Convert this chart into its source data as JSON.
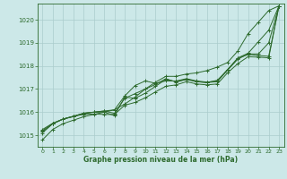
{
  "background_color": "#cce8e8",
  "grid_color": "#aacccc",
  "line_color": "#2d6a2d",
  "xlabel": "Graphe pression niveau de la mer (hPa)",
  "ylim": [
    1014.5,
    1020.7
  ],
  "xlim": [
    -0.5,
    23.5
  ],
  "yticks": [
    1015,
    1016,
    1017,
    1018,
    1019,
    1020
  ],
  "xticks": [
    0,
    1,
    2,
    3,
    4,
    5,
    6,
    7,
    8,
    9,
    10,
    11,
    12,
    13,
    14,
    15,
    16,
    17,
    18,
    19,
    20,
    21,
    22,
    23
  ],
  "series": [
    [
      1014.8,
      1015.25,
      1015.5,
      1015.65,
      1015.8,
      1015.9,
      1016.0,
      1016.1,
      1016.35,
      1016.65,
      1017.0,
      1017.3,
      1017.55,
      1017.55,
      1017.65,
      1017.7,
      1017.8,
      1017.95,
      1018.15,
      1018.65,
      1019.4,
      1019.9,
      1020.4,
      1020.6
    ],
    [
      1015.1,
      1015.5,
      1015.7,
      1015.8,
      1015.95,
      1016.0,
      1016.05,
      1016.1,
      1016.7,
      1017.15,
      1017.35,
      1017.25,
      1017.35,
      1017.35,
      1017.45,
      1017.35,
      1017.3,
      1017.35,
      1017.85,
      1018.35,
      1018.55,
      1019.05,
      1019.55,
      1020.6
    ],
    [
      1015.15,
      1015.5,
      1015.7,
      1015.82,
      1015.95,
      1016.0,
      1016.05,
      1015.95,
      1016.6,
      1016.8,
      1017.0,
      1017.2,
      1017.45,
      1017.3,
      1017.42,
      1017.32,
      1017.28,
      1017.32,
      1017.82,
      1018.3,
      1018.52,
      1018.52,
      1019.0,
      1020.6
    ],
    [
      1015.2,
      1015.5,
      1015.7,
      1015.82,
      1015.95,
      1016.0,
      1016.0,
      1015.85,
      1016.65,
      1016.6,
      1016.82,
      1017.12,
      1017.42,
      1017.32,
      1017.42,
      1017.32,
      1017.28,
      1017.38,
      1017.82,
      1018.32,
      1018.5,
      1018.45,
      1018.42,
      1020.6
    ],
    [
      1015.25,
      1015.52,
      1015.7,
      1015.82,
      1015.9,
      1015.92,
      1015.9,
      1015.9,
      1016.3,
      1016.42,
      1016.62,
      1016.88,
      1017.12,
      1017.18,
      1017.32,
      1017.22,
      1017.18,
      1017.22,
      1017.7,
      1018.1,
      1018.4,
      1018.38,
      1018.35,
      1020.6
    ]
  ]
}
